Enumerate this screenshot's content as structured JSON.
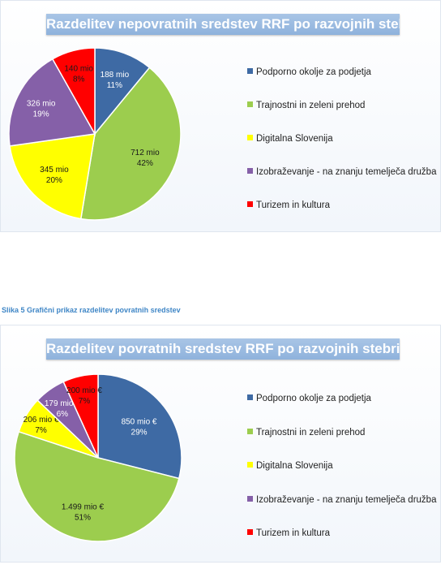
{
  "caption": "Slika 5 Grafični prikaz razdelitev povratnih sredstev",
  "colors": {
    "blue": "#3e6aa4",
    "green": "#9ccd4e",
    "yellow": "#ffff00",
    "purple": "#8560a8",
    "red": "#ff0000"
  },
  "chart_data": [
    {
      "type": "pie",
      "title": "Razdelitev nepovratnih sredstev RRF po razvojnih stebrih",
      "categories": [
        "Podporno okolje za podjetja",
        "Trajnostni in zeleni prehod",
        "Digitalna Slovenija",
        "Izobraževanje - na znanju temelječa družba",
        "Turizem in  kultura"
      ],
      "values": [
        188,
        712,
        345,
        326,
        140
      ],
      "value_labels": [
        "188 mio",
        "712 mio",
        "345 mio",
        "326 mio",
        "140 mio"
      ],
      "percent_labels": [
        "11%",
        "42%",
        "20%",
        "19%",
        "8%"
      ],
      "legend": "right"
    },
    {
      "type": "pie",
      "title": "Razdelitev povratnih sredstev RRF po razvojnih stebrih",
      "categories": [
        "Podporno okolje za podjetja",
        "Trajnostni in zeleni prehod",
        "Digitalna Slovenija",
        "Izobraževanje - na znanju temelječa družba",
        "Turizem in  kultura"
      ],
      "values": [
        850,
        1499,
        206,
        179,
        200
      ],
      "value_labels": [
        "850 mio €",
        "1.499 mio €",
        "206 mio €",
        "179 mio €",
        "200 mio €"
      ],
      "percent_labels": [
        "29%",
        "51%",
        "7%",
        "6%",
        "7%"
      ],
      "legend": "right"
    }
  ]
}
